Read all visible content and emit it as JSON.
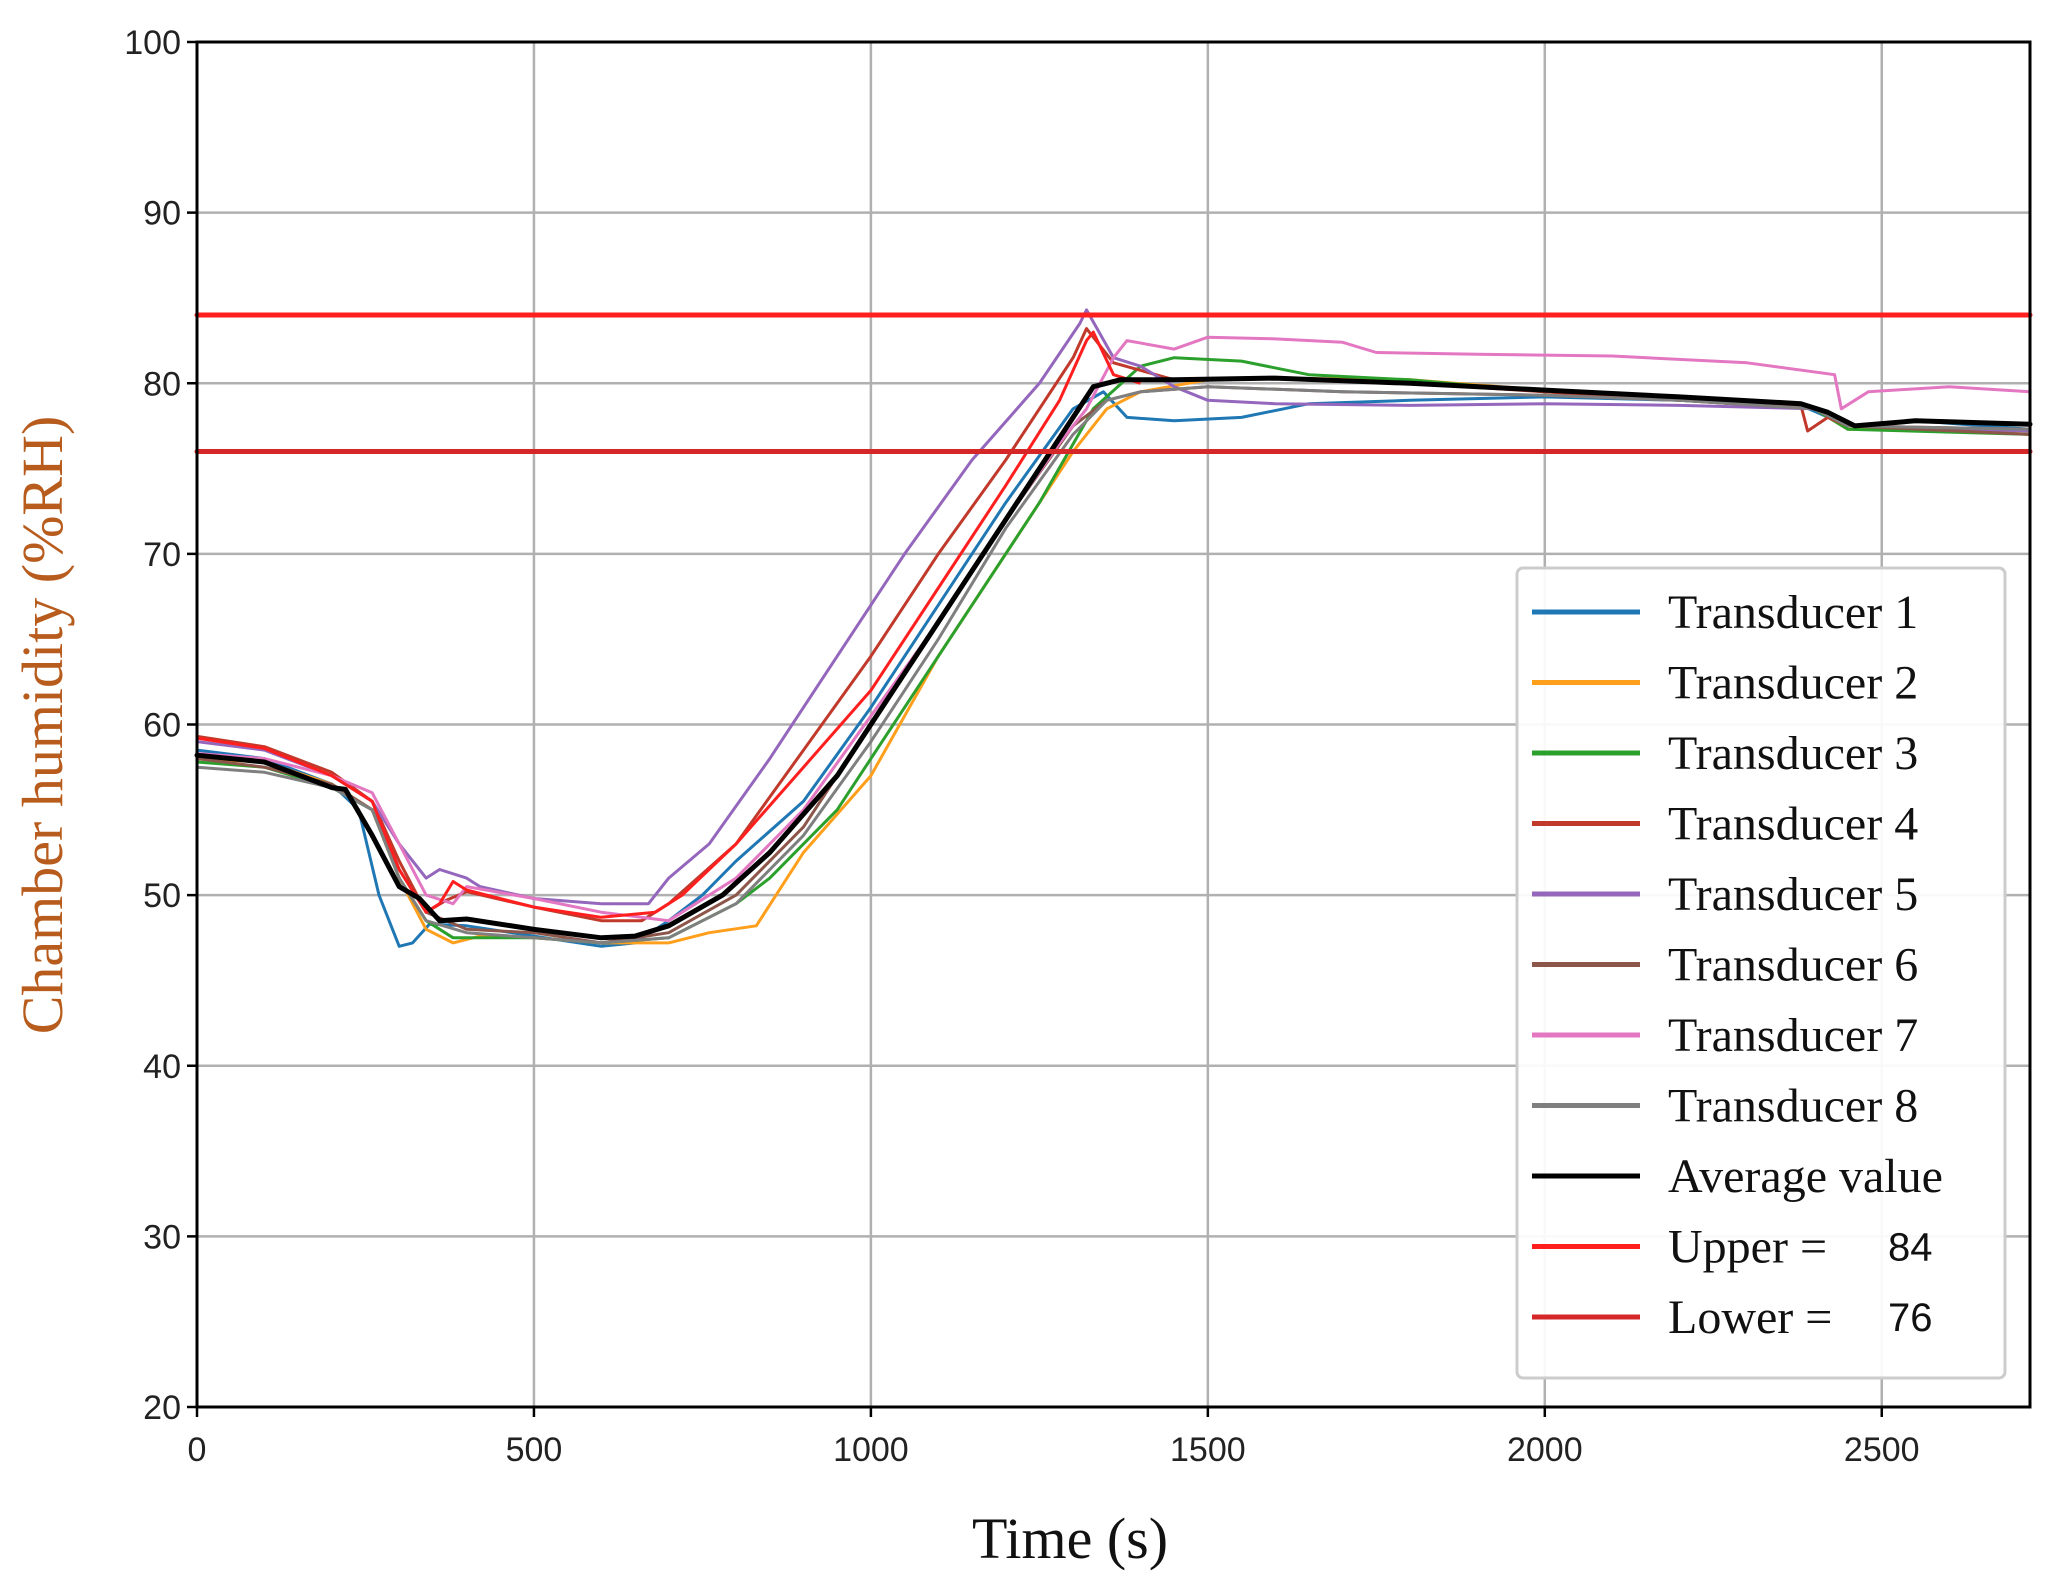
{
  "chart_data": {
    "type": "line",
    "xlabel": "Time (s)",
    "ylabel": "Chamber humidity (%RH)",
    "xlim": [
      0,
      2720
    ],
    "ylim": [
      20,
      100
    ],
    "grid": true,
    "legend_position": "lower-right",
    "x_ticks": [
      0,
      500,
      1000,
      1500,
      2000,
      2500
    ],
    "x_tick_labels": [
      "0",
      "500",
      "1000",
      "1500",
      "2000",
      "2500"
    ],
    "y_ticks": [
      20,
      30,
      40,
      50,
      60,
      70,
      80,
      90,
      100
    ],
    "y_tick_labels": [
      "20",
      "30",
      "40",
      "50",
      "60",
      "70",
      "80",
      "90",
      "100"
    ],
    "series": [
      {
        "name": "Transducer 1",
        "color": "#1f77b4",
        "width": 3,
        "points": [
          [
            0,
            58.5
          ],
          [
            100,
            58
          ],
          [
            200,
            56.5
          ],
          [
            240,
            55
          ],
          [
            270,
            50
          ],
          [
            300,
            47
          ],
          [
            320,
            47.2
          ],
          [
            345,
            48.3
          ],
          [
            400,
            48.2
          ],
          [
            500,
            47.6
          ],
          [
            600,
            47.0
          ],
          [
            650,
            47.2
          ],
          [
            700,
            48.5
          ],
          [
            750,
            50
          ],
          [
            800,
            52
          ],
          [
            900,
            55.5
          ],
          [
            1000,
            61
          ],
          [
            1100,
            67
          ],
          [
            1200,
            73
          ],
          [
            1300,
            78.5
          ],
          [
            1345,
            79.5
          ],
          [
            1380,
            78
          ],
          [
            1450,
            77.8
          ],
          [
            1550,
            78
          ],
          [
            1650,
            78.8
          ],
          [
            1800,
            79
          ],
          [
            2000,
            79.2
          ],
          [
            2200,
            79
          ],
          [
            2380,
            78.7
          ],
          [
            2450,
            77.5
          ],
          [
            2550,
            77.8
          ],
          [
            2720,
            77.3
          ]
        ]
      },
      {
        "name": "Transducer 2",
        "color": "#ff9f1c",
        "width": 3,
        "points": [
          [
            0,
            58
          ],
          [
            100,
            57.8
          ],
          [
            200,
            56.5
          ],
          [
            260,
            55
          ],
          [
            300,
            51
          ],
          [
            340,
            48
          ],
          [
            380,
            47.2
          ],
          [
            420,
            47.6
          ],
          [
            500,
            47.5
          ],
          [
            600,
            47.2
          ],
          [
            700,
            47.2
          ],
          [
            760,
            47.8
          ],
          [
            830,
            48.2
          ],
          [
            900,
            52.5
          ],
          [
            1000,
            57
          ],
          [
            1100,
            64
          ],
          [
            1200,
            70
          ],
          [
            1300,
            76
          ],
          [
            1350,
            78.5
          ],
          [
            1400,
            79.5
          ],
          [
            1500,
            80.2
          ],
          [
            1600,
            80.3
          ],
          [
            1800,
            80.2
          ],
          [
            2000,
            79.6
          ],
          [
            2200,
            79
          ],
          [
            2400,
            78.5
          ],
          [
            2450,
            77.3
          ],
          [
            2600,
            77.3
          ],
          [
            2720,
            77
          ]
        ]
      },
      {
        "name": "Transducer 3",
        "color": "#2ca02c",
        "width": 3,
        "points": [
          [
            0,
            57.8
          ],
          [
            100,
            57.5
          ],
          [
            200,
            56.3
          ],
          [
            260,
            55
          ],
          [
            300,
            51
          ],
          [
            340,
            48.5
          ],
          [
            380,
            47.5
          ],
          [
            500,
            47.5
          ],
          [
            600,
            47.2
          ],
          [
            700,
            47.5
          ],
          [
            800,
            49.5
          ],
          [
            850,
            51
          ],
          [
            950,
            55
          ],
          [
            1050,
            61
          ],
          [
            1150,
            67
          ],
          [
            1250,
            73
          ],
          [
            1330,
            78.5
          ],
          [
            1400,
            81
          ],
          [
            1450,
            81.5
          ],
          [
            1550,
            81.3
          ],
          [
            1650,
            80.5
          ],
          [
            1800,
            80.2
          ],
          [
            2000,
            79.5
          ],
          [
            2200,
            79
          ],
          [
            2400,
            78.5
          ],
          [
            2450,
            77.3
          ],
          [
            2720,
            77
          ]
        ]
      },
      {
        "name": "Transducer 4",
        "color": "#c0392b",
        "width": 3,
        "points": [
          [
            0,
            59.3
          ],
          [
            100,
            58.7
          ],
          [
            200,
            57.2
          ],
          [
            260,
            55.5
          ],
          [
            300,
            52
          ],
          [
            340,
            49
          ],
          [
            370,
            49.7
          ],
          [
            400,
            50.2
          ],
          [
            500,
            49.3
          ],
          [
            600,
            48.5
          ],
          [
            660,
            48.5
          ],
          [
            700,
            49.5
          ],
          [
            800,
            53
          ],
          [
            900,
            58.5
          ],
          [
            1000,
            64
          ],
          [
            1100,
            70
          ],
          [
            1200,
            75.5
          ],
          [
            1300,
            81.5
          ],
          [
            1320,
            83.2
          ],
          [
            1360,
            81.2
          ],
          [
            1450,
            80.2
          ],
          [
            1600,
            80.3
          ],
          [
            1800,
            80
          ],
          [
            2000,
            79.5
          ],
          [
            2200,
            79
          ],
          [
            2380,
            78.7
          ],
          [
            2390,
            77.2
          ],
          [
            2420,
            78
          ],
          [
            2450,
            77.5
          ],
          [
            2720,
            77.3
          ]
        ]
      },
      {
        "name": "Transducer 5",
        "color": "#9467bd",
        "width": 3,
        "points": [
          [
            0,
            59
          ],
          [
            100,
            58.5
          ],
          [
            200,
            57
          ],
          [
            260,
            55.5
          ],
          [
            300,
            53
          ],
          [
            340,
            51
          ],
          [
            360,
            51.5
          ],
          [
            400,
            51
          ],
          [
            420,
            50.5
          ],
          [
            500,
            49.8
          ],
          [
            600,
            49.5
          ],
          [
            670,
            49.5
          ],
          [
            700,
            51
          ],
          [
            760,
            53
          ],
          [
            850,
            58
          ],
          [
            950,
            64
          ],
          [
            1050,
            70
          ],
          [
            1150,
            75.5
          ],
          [
            1250,
            80
          ],
          [
            1310,
            83.5
          ],
          [
            1320,
            84.3
          ],
          [
            1360,
            81.5
          ],
          [
            1400,
            81
          ],
          [
            1450,
            79.8
          ],
          [
            1500,
            79
          ],
          [
            1600,
            78.8
          ],
          [
            1800,
            78.7
          ],
          [
            2000,
            78.8
          ],
          [
            2200,
            78.7
          ],
          [
            2400,
            78.5
          ],
          [
            2450,
            77.5
          ],
          [
            2720,
            77.2
          ]
        ]
      },
      {
        "name": "Transducer 6",
        "color": "#8c564b",
        "width": 3,
        "points": [
          [
            0,
            58
          ],
          [
            100,
            57.5
          ],
          [
            200,
            56.5
          ],
          [
            260,
            55
          ],
          [
            300,
            51.5
          ],
          [
            340,
            49
          ],
          [
            400,
            48
          ],
          [
            500,
            47.8
          ],
          [
            600,
            47.2
          ],
          [
            700,
            47.8
          ],
          [
            800,
            50
          ],
          [
            900,
            54
          ],
          [
            1000,
            60
          ],
          [
            1100,
            66
          ],
          [
            1200,
            72
          ],
          [
            1300,
            77.5
          ],
          [
            1350,
            79
          ],
          [
            1400,
            79.5
          ],
          [
            1500,
            79.8
          ],
          [
            1700,
            79.5
          ],
          [
            2000,
            79.3
          ],
          [
            2200,
            79
          ],
          [
            2400,
            78.5
          ],
          [
            2450,
            77.5
          ],
          [
            2720,
            77
          ]
        ]
      },
      {
        "name": "Transducer 7",
        "color": "#e377c2",
        "width": 3,
        "points": [
          [
            0,
            58.3
          ],
          [
            100,
            58
          ],
          [
            200,
            57
          ],
          [
            260,
            56
          ],
          [
            300,
            53
          ],
          [
            340,
            50
          ],
          [
            380,
            49.5
          ],
          [
            400,
            50.5
          ],
          [
            500,
            49.8
          ],
          [
            600,
            49
          ],
          [
            700,
            48.5
          ],
          [
            800,
            51
          ],
          [
            900,
            55
          ],
          [
            1000,
            60.5
          ],
          [
            1100,
            66
          ],
          [
            1200,
            72
          ],
          [
            1280,
            76.5
          ],
          [
            1320,
            78.5
          ],
          [
            1360,
            81.5
          ],
          [
            1380,
            82.5
          ],
          [
            1450,
            82
          ],
          [
            1500,
            82.7
          ],
          [
            1600,
            82.6
          ],
          [
            1700,
            82.4
          ],
          [
            1750,
            81.8
          ],
          [
            1900,
            81.7
          ],
          [
            2100,
            81.6
          ],
          [
            2300,
            81.2
          ],
          [
            2430,
            80.5
          ],
          [
            2440,
            78.5
          ],
          [
            2480,
            79.5
          ],
          [
            2600,
            79.8
          ],
          [
            2720,
            79.5
          ]
        ]
      },
      {
        "name": "Transducer 8",
        "color": "#7f7f7f",
        "width": 3,
        "points": [
          [
            0,
            57.5
          ],
          [
            100,
            57.2
          ],
          [
            200,
            56.3
          ],
          [
            260,
            55
          ],
          [
            300,
            51
          ],
          [
            340,
            48.5
          ],
          [
            400,
            47.8
          ],
          [
            500,
            47.5
          ],
          [
            600,
            47.2
          ],
          [
            700,
            47.5
          ],
          [
            800,
            49.5
          ],
          [
            900,
            53.5
          ],
          [
            1000,
            59
          ],
          [
            1100,
            65
          ],
          [
            1200,
            71.5
          ],
          [
            1300,
            77
          ],
          [
            1350,
            79
          ],
          [
            1400,
            79.5
          ],
          [
            1500,
            79.8
          ],
          [
            1700,
            79.5
          ],
          [
            2000,
            79.3
          ],
          [
            2200,
            79
          ],
          [
            2400,
            78.5
          ],
          [
            2450,
            77.5
          ],
          [
            2720,
            77.3
          ]
        ]
      },
      {
        "name": "Average value",
        "color": "#000000",
        "width": 5,
        "points": [
          [
            0,
            58.2
          ],
          [
            100,
            57.8
          ],
          [
            200,
            56.3
          ],
          [
            220,
            56.2
          ],
          [
            260,
            53.5
          ],
          [
            300,
            50.5
          ],
          [
            330,
            49.8
          ],
          [
            360,
            48.5
          ],
          [
            400,
            48.6
          ],
          [
            500,
            48
          ],
          [
            600,
            47.5
          ],
          [
            650,
            47.6
          ],
          [
            700,
            48.2
          ],
          [
            780,
            50
          ],
          [
            850,
            52.5
          ],
          [
            950,
            57
          ],
          [
            1050,
            63
          ],
          [
            1150,
            69
          ],
          [
            1250,
            75
          ],
          [
            1300,
            78
          ],
          [
            1330,
            79.8
          ],
          [
            1370,
            80.2
          ],
          [
            1450,
            80.2
          ],
          [
            1600,
            80.3
          ],
          [
            1800,
            80
          ],
          [
            2000,
            79.6
          ],
          [
            2200,
            79.2
          ],
          [
            2380,
            78.8
          ],
          [
            2420,
            78.3
          ],
          [
            2460,
            77.5
          ],
          [
            2550,
            77.8
          ],
          [
            2720,
            77.6
          ]
        ]
      },
      {
        "name": "Upper =",
        "color": "#ff1f1f",
        "width": 5,
        "value_label": "84",
        "points": [
          [
            0,
            84
          ],
          [
            2720,
            84
          ]
        ]
      },
      {
        "name": "Lower =",
        "color": "#d62728",
        "width": 5,
        "value_label": "76",
        "points": [
          [
            0,
            76
          ],
          [
            2720,
            76
          ]
        ]
      }
    ],
    "upper_red_curve": {
      "color": "#ff1f1f",
      "points": [
        [
          0,
          59.2
        ],
        [
          100,
          58.6
        ],
        [
          200,
          57
        ],
        [
          260,
          55.5
        ],
        [
          300,
          51.5
        ],
        [
          340,
          49
        ],
        [
          360,
          49.5
        ],
        [
          380,
          50.8
        ],
        [
          400,
          50.3
        ],
        [
          500,
          49.3
        ],
        [
          600,
          48.7
        ],
        [
          680,
          49
        ],
        [
          720,
          50
        ],
        [
          800,
          53
        ],
        [
          900,
          57.5
        ],
        [
          1000,
          62
        ],
        [
          1100,
          68
        ],
        [
          1200,
          74
        ],
        [
          1280,
          79
        ],
        [
          1320,
          82.5
        ],
        [
          1330,
          83
        ],
        [
          1360,
          80.5
        ],
        [
          1400,
          80
        ]
      ]
    }
  }
}
